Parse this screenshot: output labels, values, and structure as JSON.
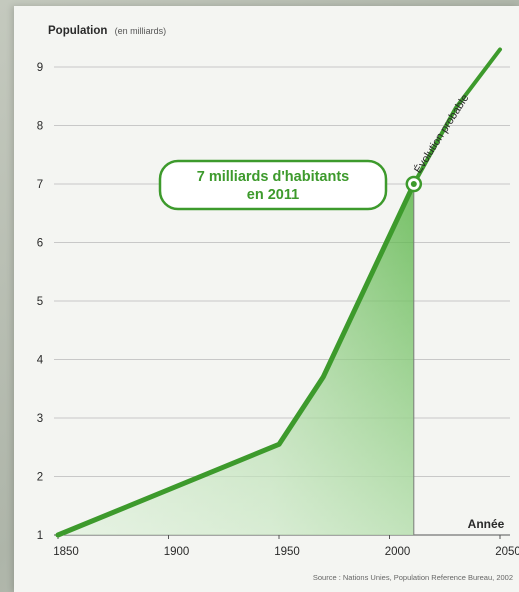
{
  "chart_data": {
    "type": "area",
    "title": "",
    "ylabel": "Population",
    "ylabel_unit": "(en milliards)",
    "xlabel": "Année",
    "x_ticks": [
      1850,
      1900,
      1950,
      2000,
      2050
    ],
    "y_ticks": [
      1,
      2,
      3,
      4,
      5,
      6,
      7,
      8,
      9
    ],
    "xlim": [
      1850,
      2050
    ],
    "ylim": [
      1,
      9
    ],
    "grid": true,
    "series": [
      {
        "values": [
          {
            "x": 1850,
            "y": 1.0
          },
          {
            "x": 1950,
            "y": 2.55
          },
          {
            "x": 1970,
            "y": 3.7
          },
          {
            "x": 2011,
            "y": 7.0
          }
        ]
      },
      {
        "values": [
          {
            "x": 2011,
            "y": 7.0
          },
          {
            "x": 2030,
            "y": 8.3
          },
          {
            "x": 2050,
            "y": 9.3
          }
        ]
      }
    ],
    "annotations": {
      "highlight_line1": "7 milliards d'habitants",
      "highlight_line2": "en 2011",
      "projection_label": "Évolution probable",
      "highlight_point": {
        "x": 2011,
        "y": 7.0
      }
    },
    "source": "Source : Nations Unies, Population Reference Bureau, 2002",
    "colors": {
      "line": "#3d9a2c",
      "fill_top": "#4caf38",
      "grid": "#c8c8c8",
      "text": "#2a2a2a"
    }
  }
}
